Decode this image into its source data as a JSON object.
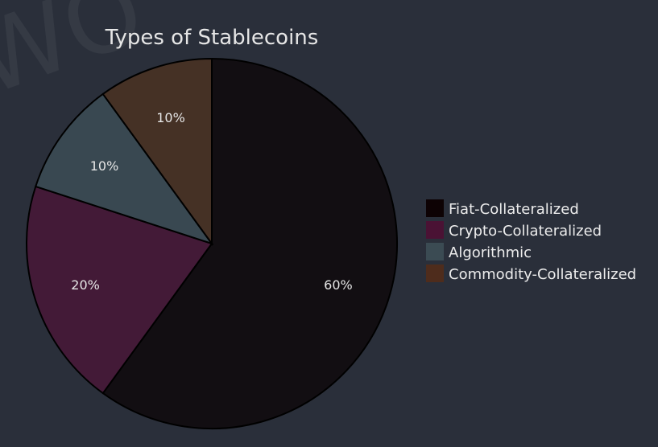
{
  "chart_data": {
    "type": "pie",
    "title": "Types of Stablecoins",
    "slices": [
      {
        "label": "Fiat-Collateralized",
        "value": 60,
        "display": "60%",
        "color": "#120e12"
      },
      {
        "label": "Crypto-Collateralized",
        "value": 20,
        "display": "20%",
        "color": "#431a37"
      },
      {
        "label": "Algorithmic",
        "value": 10,
        "display": "10%",
        "color": "#394851"
      },
      {
        "label": "Commodity-Collateralized",
        "value": 10,
        "display": "10%",
        "color": "#453125"
      }
    ],
    "legend": {
      "placement": "right",
      "swatch_colors": [
        "#0d0204",
        "#4a1234",
        "#3b4b53",
        "#4e2c1c"
      ]
    },
    "start_direction": "top",
    "direction": "clockwise"
  }
}
